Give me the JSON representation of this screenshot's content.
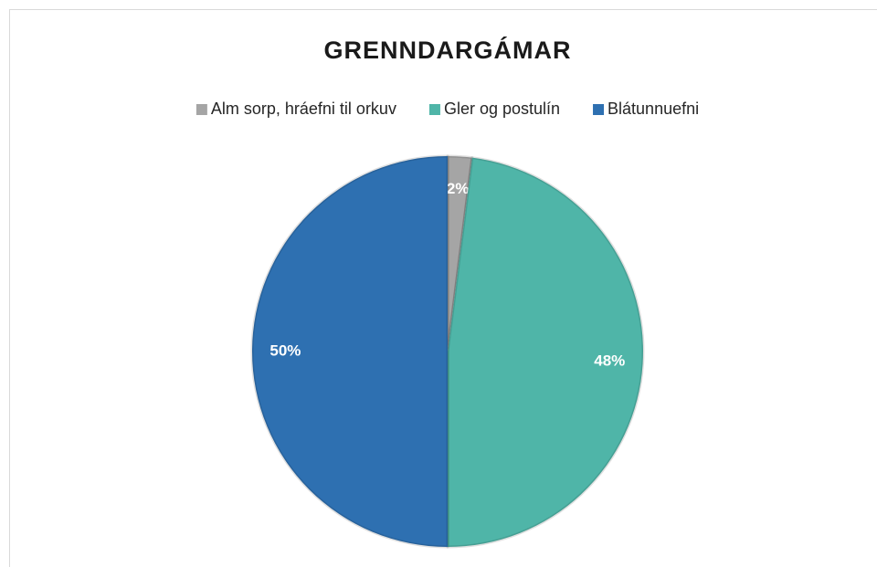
{
  "chart_data": {
    "type": "pie",
    "title": "GRENNDARGÁMAR",
    "categories": [
      "Alm sorp, hráefni til orkuv",
      "Gler og postulín",
      "Blátunnuefni"
    ],
    "values": [
      2,
      48,
      50
    ],
    "value_labels": [
      "2%",
      "48%",
      "50%"
    ],
    "colors": [
      "#a5a5a5",
      "#4fb5a8",
      "#2e70b1"
    ],
    "legend": "top"
  }
}
